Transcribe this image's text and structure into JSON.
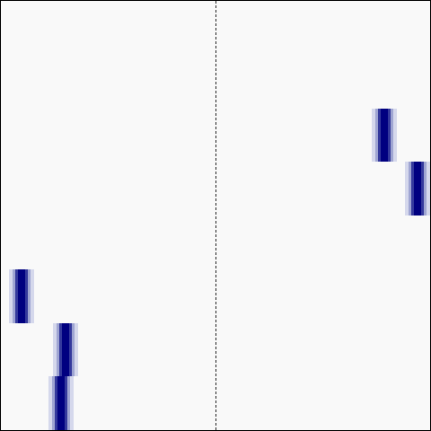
{
  "board": {
    "lanes": 8,
    "colors": {
      "background": "#f9f9f9",
      "border": "#000000",
      "divider": "#222222",
      "marker_core": "#000080",
      "marker_mid": "#34399c",
      "marker_band": "#9fa5d2",
      "marker_halo": "#d5d8ec"
    },
    "markers": [
      {
        "lane": 2,
        "column_fraction": 0.893
      },
      {
        "lane": 3,
        "column_fraction": 0.97
      },
      {
        "lane": 5,
        "column_fraction": 0.048
      },
      {
        "lane": 6,
        "column_fraction": 0.151
      },
      {
        "lane": 7,
        "column_fraction": 0.14
      }
    ]
  }
}
